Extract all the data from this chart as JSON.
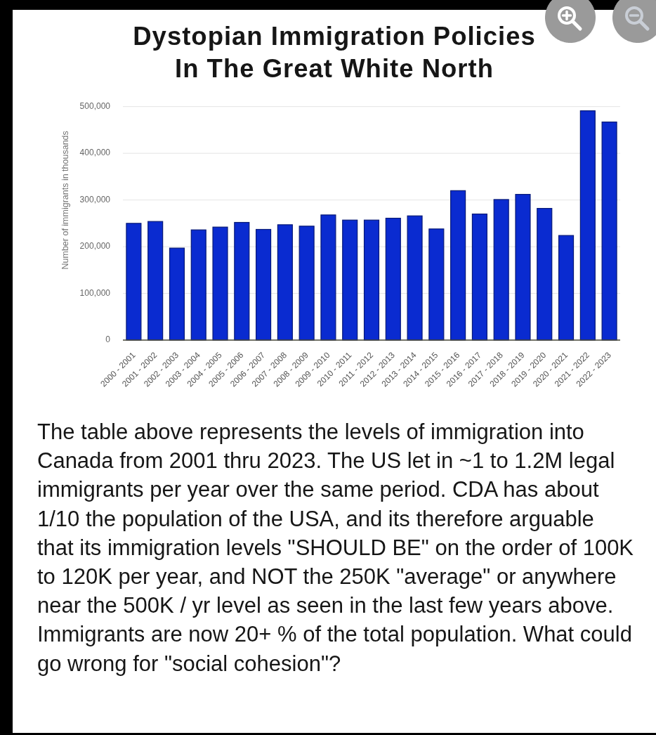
{
  "chart_data": {
    "type": "bar",
    "title": "Dystopian Immigration Policies\nIn The Great White North",
    "ylabel": "Number of immigrants in thousands",
    "categories": [
      "2000 - 2001",
      "2001 - 2002",
      "2002 - 2003",
      "2003 - 2004",
      "2004 - 2005",
      "2005 - 2006",
      "2006 - 2007",
      "2007 - 2008",
      "2008 - 2009",
      "2009 - 2010",
      "2010 - 2011",
      "2011 - 2012",
      "2012 - 2013",
      "2013 - 2014",
      "2014 - 2015",
      "2015 - 2016",
      "2016 - 2017",
      "2017 - 2018",
      "2018 - 2019",
      "2019 - 2020",
      "2020 - 2021",
      "2021 - 2022",
      "2022 - 2023"
    ],
    "values": [
      250000,
      254000,
      197000,
      236000,
      242000,
      252000,
      237000,
      247000,
      244000,
      268000,
      257000,
      257000,
      261000,
      266000,
      238000,
      320000,
      270000,
      301000,
      312000,
      282000,
      224000,
      491000,
      467000
    ],
    "color": "#0a2bd0",
    "ylim": [
      0,
      500000
    ],
    "yticks": [
      0,
      {
        "value": 100000,
        "label": "100,000"
      },
      {
        "value": 200000,
        "label": "200,000"
      },
      {
        "value": 300000,
        "label": "300,000"
      },
      {
        "value": 400000,
        "label": "400,000"
      },
      {
        "value": 500000,
        "label": "500,000"
      }
    ],
    "grid": "y",
    "annotations": [
      "The table above represents the levels of immigration into Canada from 2001 thru 2023. The US let in ~1 to 1.2M legal immigrants per year over the same period. CDA has about 1/10 the population of the USA, and its therefore arguable that its immigration levels \"SHOULD BE\" on the order of 100K to 120K per year, and NOT the 250K \"average\" or anywhere near the 500K / yr level as seen in the last few years above. Immigrants are now 20+ % of the total population. What could go wrong for \"social cohesion\"?"
    ]
  }
}
